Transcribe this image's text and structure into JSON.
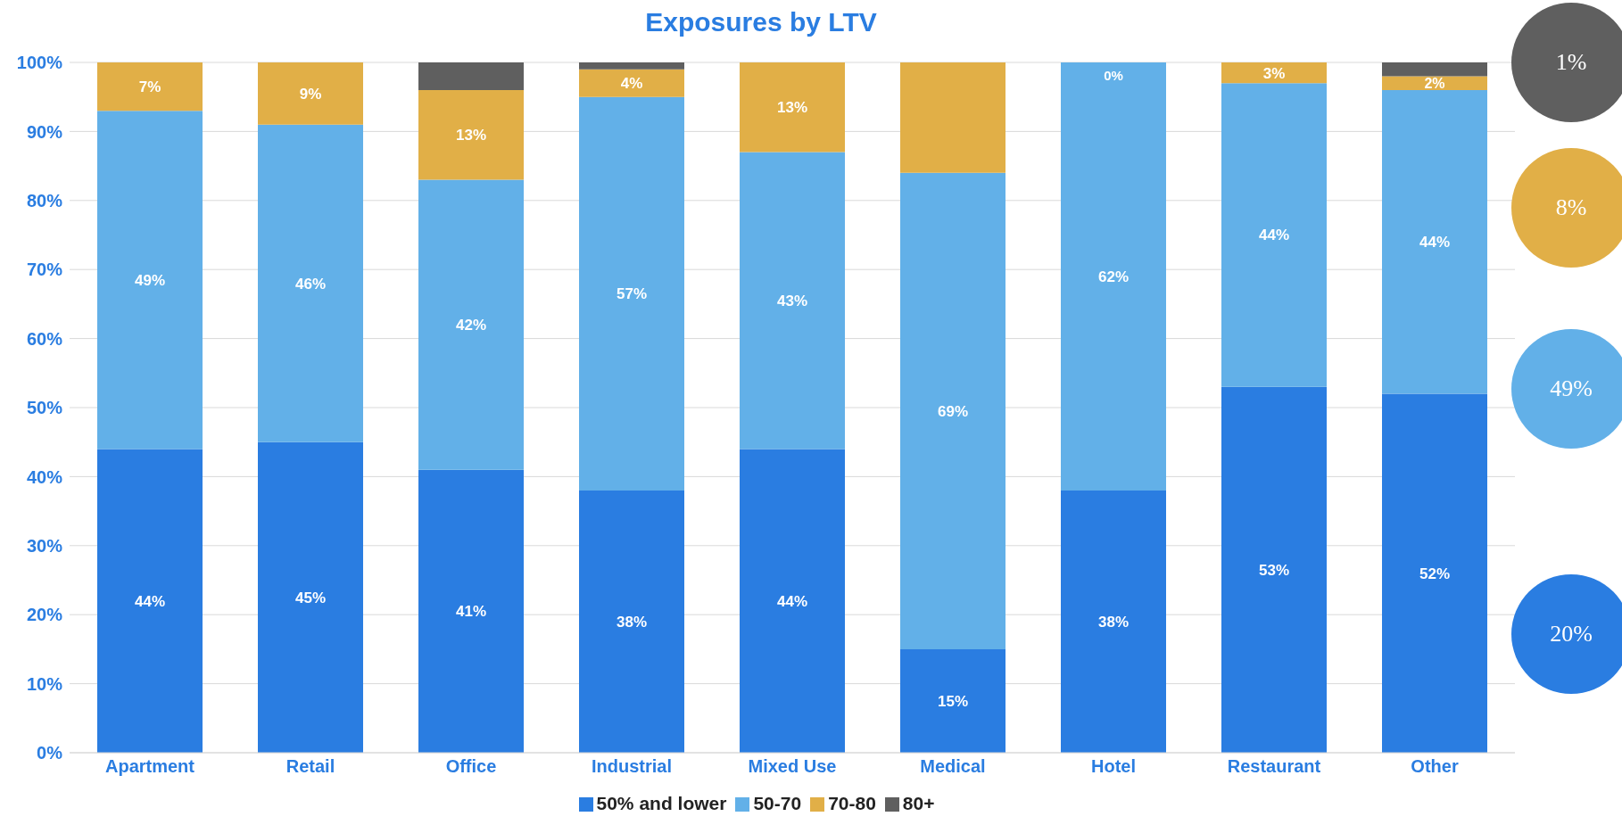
{
  "chart_data": {
    "type": "bar",
    "title": "Exposures by LTV",
    "stacked": true,
    "categories": [
      "Apartment",
      "Retail",
      "Office",
      "Industrial",
      "Mixed Use",
      "Medical",
      "Hotel",
      "Restaurant",
      "Other"
    ],
    "series": [
      {
        "name": "50% and lower",
        "color": "#2a7de1",
        "values": [
          44,
          45,
          41,
          38,
          44,
          15,
          38,
          53,
          52
        ],
        "value_labels": [
          "44%",
          "45%",
          "41%",
          "38%",
          "44%",
          "15%",
          "38%",
          "53%",
          "52%"
        ]
      },
      {
        "name": "50-70",
        "color": "#62b0e8",
        "values": [
          49,
          46,
          42,
          57,
          43,
          69,
          62,
          44,
          44
        ],
        "value_labels": [
          "49%",
          "46%",
          "42%",
          "57%",
          "43%",
          "69%",
          "62%",
          "44%",
          "44%"
        ]
      },
      {
        "name": "70-80",
        "color": "#e1af47",
        "values": [
          7,
          9,
          13,
          4,
          13,
          16,
          0,
          3,
          2
        ],
        "value_labels": [
          "7%",
          "9%",
          "13%",
          "4%",
          "13%",
          null,
          "0%",
          "3%",
          "2%"
        ]
      },
      {
        "name": "80+",
        "color": "#5f5f5f",
        "values": [
          0,
          0,
          4,
          1,
          0,
          0,
          0,
          0,
          2
        ],
        "value_labels": [
          null,
          null,
          null,
          null,
          null,
          null,
          null,
          null,
          null
        ]
      }
    ],
    "ylim": [
      0,
      100
    ],
    "yticks": [
      {
        "value": 0,
        "label": "0%"
      },
      {
        "value": 10,
        "label": "10%"
      },
      {
        "value": 20,
        "label": "20%"
      },
      {
        "value": 30,
        "label": "30%"
      },
      {
        "value": 40,
        "label": "40%"
      },
      {
        "value": 50,
        "label": "50%"
      },
      {
        "value": 60,
        "label": "60%"
      },
      {
        "value": 70,
        "label": "70%"
      },
      {
        "value": 80,
        "label": "80%"
      },
      {
        "value": 90,
        "label": "90%"
      },
      {
        "value": 100,
        "label": "100%"
      }
    ],
    "grid": "y",
    "legend": "bottom",
    "annotations": [
      "1%",
      "8%",
      "49%",
      "20%"
    ]
  }
}
